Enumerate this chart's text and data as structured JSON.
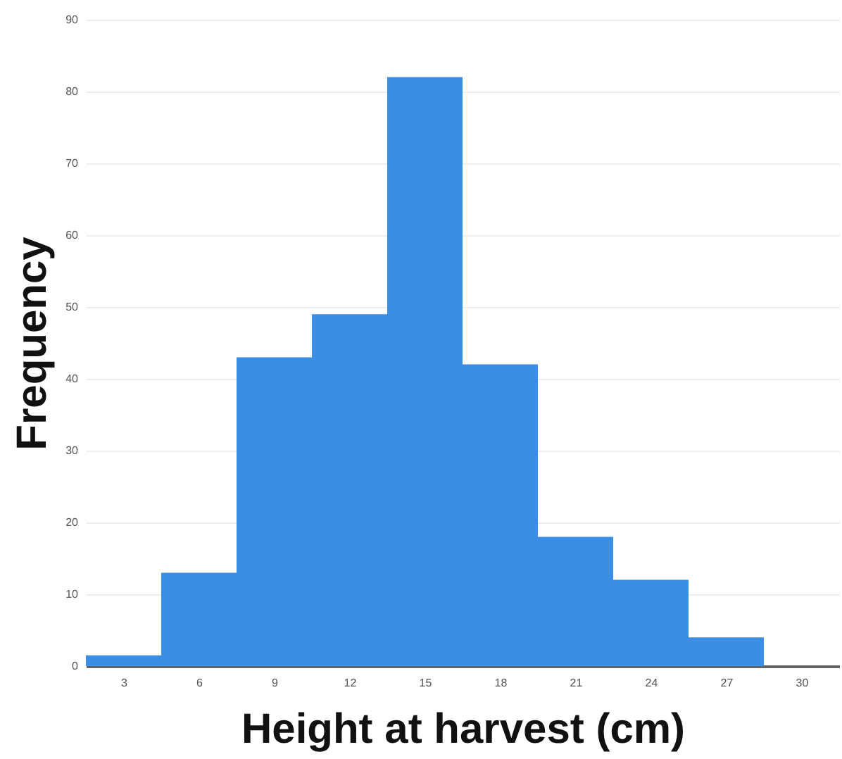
{
  "chart_data": {
    "type": "histogram",
    "xlabel": "Height at harvest (cm)",
    "ylabel": "Frequency",
    "bins": [
      1.5,
      4.5,
      7.5,
      10.5,
      13.5,
      16.5,
      19.5,
      22.5,
      25.5,
      28.5,
      31.5
    ],
    "values": [
      1.5,
      13,
      43,
      49,
      82,
      42,
      18,
      12,
      4,
      0
    ],
    "color": "#3a8ee6",
    "xlim": [
      1.5,
      31.5
    ],
    "xticks": [
      3,
      6,
      9,
      12,
      15,
      18,
      21,
      24,
      27,
      30
    ],
    "ylim": [
      0,
      90
    ],
    "yticks": [
      0,
      10,
      20,
      30,
      40,
      50,
      60,
      70,
      80,
      90
    ],
    "grid": "y"
  }
}
